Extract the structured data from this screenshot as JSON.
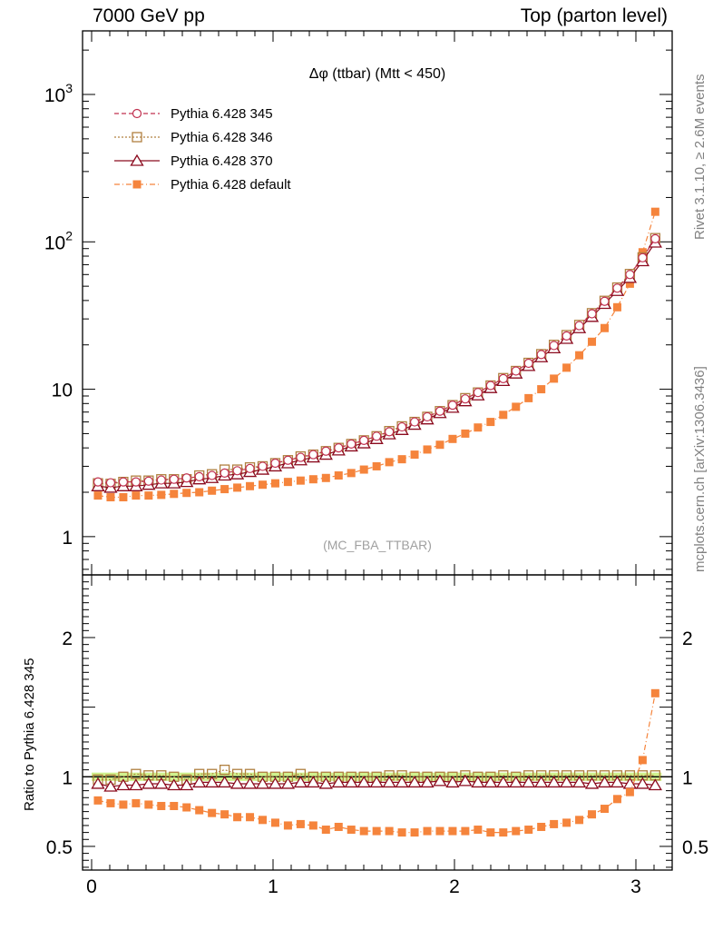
{
  "header": {
    "left": "7000 GeV pp",
    "right": "Top (parton level)"
  },
  "side_labels": {
    "rivet": "Rivet 3.1.10, ≥ 2.6M events",
    "mcplots": "mcplots.cern.ch [arXiv:1306.3436]"
  },
  "plot_title": "Δφ (ttbar) (Mtt < 450)",
  "watermark": "(MC_FBA_TTBAR)",
  "ratio_ylabel": "Ratio to Pythia 6.428 345",
  "colors": {
    "s345": "#c0304f",
    "s346": "#b08040",
    "s370": "#8b0a1e",
    "default": "#f5843c",
    "band": "#c8f07a"
  },
  "chart_data": [
    {
      "type": "line",
      "yscale": "log",
      "xlim": [
        -0.05,
        3.2
      ],
      "ylim": [
        0.55,
        2700
      ],
      "ytick_labels": [
        "1",
        "10",
        "10^2",
        "10^3"
      ],
      "series": [
        {
          "name": "Pythia 6.428 345",
          "marker": "circle",
          "dash": "5,3",
          "values": [
            2.35,
            2.32,
            2.35,
            2.35,
            2.38,
            2.42,
            2.45,
            2.5,
            2.55,
            2.6,
            2.7,
            2.8,
            2.9,
            3.0,
            3.15,
            3.3,
            3.45,
            3.6,
            3.8,
            4.0,
            4.25,
            4.5,
            4.8,
            5.15,
            5.55,
            6.0,
            6.5,
            7.1,
            7.8,
            8.6,
            9.5,
            10.6,
            11.8,
            13.3,
            15.0,
            17.2,
            19.8,
            23.0,
            27.0,
            32.5,
            39.5,
            48.5,
            60.0,
            78.0,
            105.0
          ]
        },
        {
          "name": "Pythia 6.428 346",
          "marker": "square",
          "dash": "2,2",
          "values": [
            2.3,
            2.28,
            2.35,
            2.4,
            2.4,
            2.45,
            2.45,
            2.45,
            2.6,
            2.65,
            2.85,
            2.85,
            2.95,
            3.0,
            3.15,
            3.3,
            3.5,
            3.6,
            3.8,
            4.0,
            4.25,
            4.5,
            4.8,
            5.2,
            5.6,
            6.0,
            6.5,
            7.1,
            7.8,
            8.7,
            9.5,
            10.6,
            11.9,
            13.3,
            15.1,
            17.3,
            20.0,
            23.3,
            27.3,
            32.8,
            39.8,
            49.0,
            60.5,
            78.5,
            106.0
          ]
        },
        {
          "name": "Pythia 6.428 370",
          "marker": "triangle",
          "dash": "",
          "values": [
            2.2,
            2.15,
            2.2,
            2.2,
            2.25,
            2.3,
            2.3,
            2.35,
            2.45,
            2.5,
            2.6,
            2.65,
            2.75,
            2.85,
            3.0,
            3.15,
            3.3,
            3.45,
            3.6,
            3.85,
            4.1,
            4.3,
            4.6,
            4.95,
            5.3,
            5.75,
            6.25,
            6.9,
            7.5,
            8.3,
            9.1,
            10.2,
            11.4,
            12.8,
            14.4,
            16.5,
            19.0,
            22.0,
            26.0,
            31.0,
            38.0,
            46.5,
            57.0,
            74.0,
            99.0
          ]
        },
        {
          "name": "Pythia 6.428 default",
          "marker": "filled-square",
          "dash": "6,3,1,3",
          "values": [
            1.9,
            1.85,
            1.85,
            1.9,
            1.9,
            1.92,
            1.95,
            1.98,
            2.0,
            2.05,
            2.1,
            2.15,
            2.2,
            2.25,
            2.3,
            2.35,
            2.4,
            2.45,
            2.5,
            2.6,
            2.7,
            2.85,
            3.0,
            3.2,
            3.35,
            3.6,
            3.9,
            4.2,
            4.6,
            5.0,
            5.5,
            6.0,
            6.7,
            7.6,
            8.7,
            10.0,
            11.8,
            14.0,
            17.0,
            21.0,
            26.0,
            36.0,
            52.0,
            85.0,
            160.0
          ]
        }
      ]
    },
    {
      "type": "line",
      "xlim": [
        -0.05,
        3.2
      ],
      "ylim": [
        0.33,
        2.45
      ],
      "ytick_labels": [
        "0.5",
        "1",
        "2"
      ],
      "xtick_labels": [
        "0",
        "1",
        "2",
        "3"
      ],
      "band": [
        0.97,
        1.03
      ],
      "series": [
        {
          "name": "Pythia 6.428 346",
          "marker": "square",
          "dash": "2,2",
          "values": [
            0.98,
            0.98,
            1.0,
            1.02,
            1.01,
            1.01,
            1.0,
            0.98,
            1.02,
            1.02,
            1.05,
            1.02,
            1.02,
            1.0,
            1.0,
            1.0,
            1.02,
            1.0,
            1.0,
            1.0,
            1.0,
            1.0,
            1.0,
            1.01,
            1.01,
            1.0,
            1.0,
            1.0,
            1.0,
            1.01,
            1.0,
            1.0,
            1.01,
            1.0,
            1.01,
            1.01,
            1.01,
            1.01,
            1.01,
            1.01,
            1.01,
            1.01,
            1.01,
            1.01,
            1.01
          ]
        },
        {
          "name": "Pythia 6.428 370",
          "marker": "triangle",
          "dash": "",
          "values": [
            0.95,
            0.93,
            0.94,
            0.94,
            0.95,
            0.95,
            0.94,
            0.94,
            0.96,
            0.96,
            0.96,
            0.95,
            0.95,
            0.95,
            0.95,
            0.95,
            0.96,
            0.96,
            0.95,
            0.96,
            0.96,
            0.96,
            0.96,
            0.96,
            0.96,
            0.96,
            0.96,
            0.97,
            0.96,
            0.97,
            0.96,
            0.96,
            0.96,
            0.96,
            0.96,
            0.96,
            0.96,
            0.96,
            0.96,
            0.95,
            0.96,
            0.96,
            0.95,
            0.95,
            0.94
          ]
        },
        {
          "name": "Pythia 6.428 default",
          "marker": "filled-square",
          "dash": "6,3,1,3",
          "values": [
            0.83,
            0.81,
            0.8,
            0.81,
            0.8,
            0.79,
            0.79,
            0.78,
            0.76,
            0.74,
            0.73,
            0.71,
            0.71,
            0.69,
            0.67,
            0.65,
            0.66,
            0.65,
            0.62,
            0.64,
            0.62,
            0.61,
            0.61,
            0.61,
            0.6,
            0.6,
            0.61,
            0.61,
            0.61,
            0.61,
            0.62,
            0.6,
            0.6,
            0.61,
            0.62,
            0.64,
            0.66,
            0.67,
            0.69,
            0.73,
            0.77,
            0.84,
            0.89,
            1.12,
            1.6
          ]
        }
      ]
    }
  ]
}
